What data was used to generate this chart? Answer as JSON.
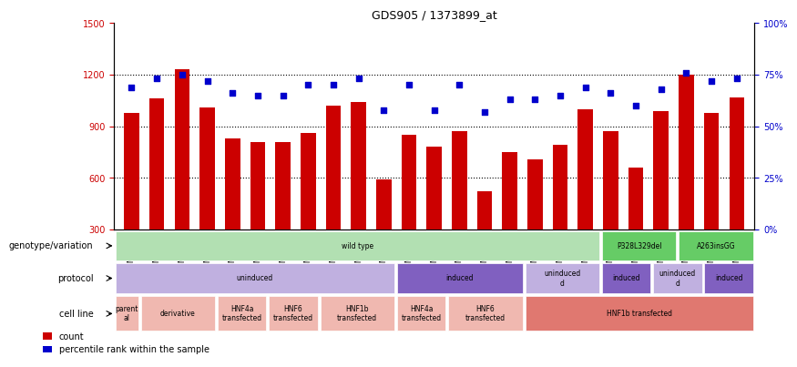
{
  "title": "GDS905 / 1373899_at",
  "samples": [
    "GSM27203",
    "GSM27204",
    "GSM27205",
    "GSM27206",
    "GSM27207",
    "GSM27150",
    "GSM27152",
    "GSM27156",
    "GSM27159",
    "GSM27063",
    "GSM27148",
    "GSM27151",
    "GSM27153",
    "GSM27157",
    "GSM27160",
    "GSM27147",
    "GSM27149",
    "GSM27161",
    "GSM27165",
    "GSM27163",
    "GSM27167",
    "GSM27169",
    "GSM27171",
    "GSM27170",
    "GSM27172"
  ],
  "counts": [
    980,
    1060,
    1230,
    1010,
    830,
    810,
    810,
    860,
    1020,
    1040,
    590,
    850,
    780,
    870,
    520,
    750,
    710,
    790,
    1000,
    870,
    660,
    990,
    1200,
    980,
    1070
  ],
  "percentile": [
    69,
    73,
    75,
    72,
    66,
    65,
    65,
    70,
    70,
    73,
    58,
    70,
    58,
    70,
    57,
    63,
    63,
    65,
    69,
    66,
    60,
    68,
    76,
    72,
    73
  ],
  "ylim_left": [
    300,
    1500
  ],
  "ylim_right": [
    0,
    100
  ],
  "yticks_left": [
    300,
    600,
    900,
    1200,
    1500
  ],
  "yticks_right": [
    0,
    25,
    50,
    75,
    100
  ],
  "bar_color": "#cc0000",
  "dot_color": "#0000cc",
  "bg_color": "#ffffff",
  "grid_color": "#000000",
  "annotation_rows": [
    {
      "label": "genotype/variation",
      "segments": [
        {
          "text": "wild type",
          "start": 0,
          "end": 19,
          "color": "#b2e0b2"
        },
        {
          "text": "P328L329del",
          "start": 19,
          "end": 22,
          "color": "#66cc66"
        },
        {
          "text": "A263insGG",
          "start": 22,
          "end": 25,
          "color": "#66cc66"
        }
      ]
    },
    {
      "label": "protocol",
      "segments": [
        {
          "text": "uninduced",
          "start": 0,
          "end": 11,
          "color": "#c0b0e0"
        },
        {
          "text": "induced",
          "start": 11,
          "end": 16,
          "color": "#8060c0"
        },
        {
          "text": "uninduced\nd",
          "start": 16,
          "end": 19,
          "color": "#c0b0e0"
        },
        {
          "text": "induced",
          "start": 19,
          "end": 21,
          "color": "#8060c0"
        },
        {
          "text": "uninduced\nd",
          "start": 21,
          "end": 23,
          "color": "#c0b0e0"
        },
        {
          "text": "induced",
          "start": 23,
          "end": 25,
          "color": "#8060c0"
        }
      ]
    },
    {
      "label": "cell line",
      "segments": [
        {
          "text": "parent\nal",
          "start": 0,
          "end": 1,
          "color": "#f0b8b0"
        },
        {
          "text": "derivative",
          "start": 1,
          "end": 4,
          "color": "#f0b8b0"
        },
        {
          "text": "HNF4a\ntransfected",
          "start": 4,
          "end": 6,
          "color": "#f0b8b0"
        },
        {
          "text": "HNF6\ntransfected",
          "start": 6,
          "end": 8,
          "color": "#f0b8b0"
        },
        {
          "text": "HNF1b\ntransfected",
          "start": 8,
          "end": 11,
          "color": "#f0b8b0"
        },
        {
          "text": "HNF4a\ntransfected",
          "start": 11,
          "end": 13,
          "color": "#f0b8b0"
        },
        {
          "text": "HNF6\ntransfected",
          "start": 13,
          "end": 16,
          "color": "#f0b8b0"
        },
        {
          "text": "HNF1b transfected",
          "start": 16,
          "end": 25,
          "color": "#e07870"
        }
      ]
    }
  ],
  "legend_items": [
    {
      "color": "#cc0000",
      "label": "count"
    },
    {
      "color": "#0000cc",
      "label": "percentile rank within the sample"
    }
  ]
}
